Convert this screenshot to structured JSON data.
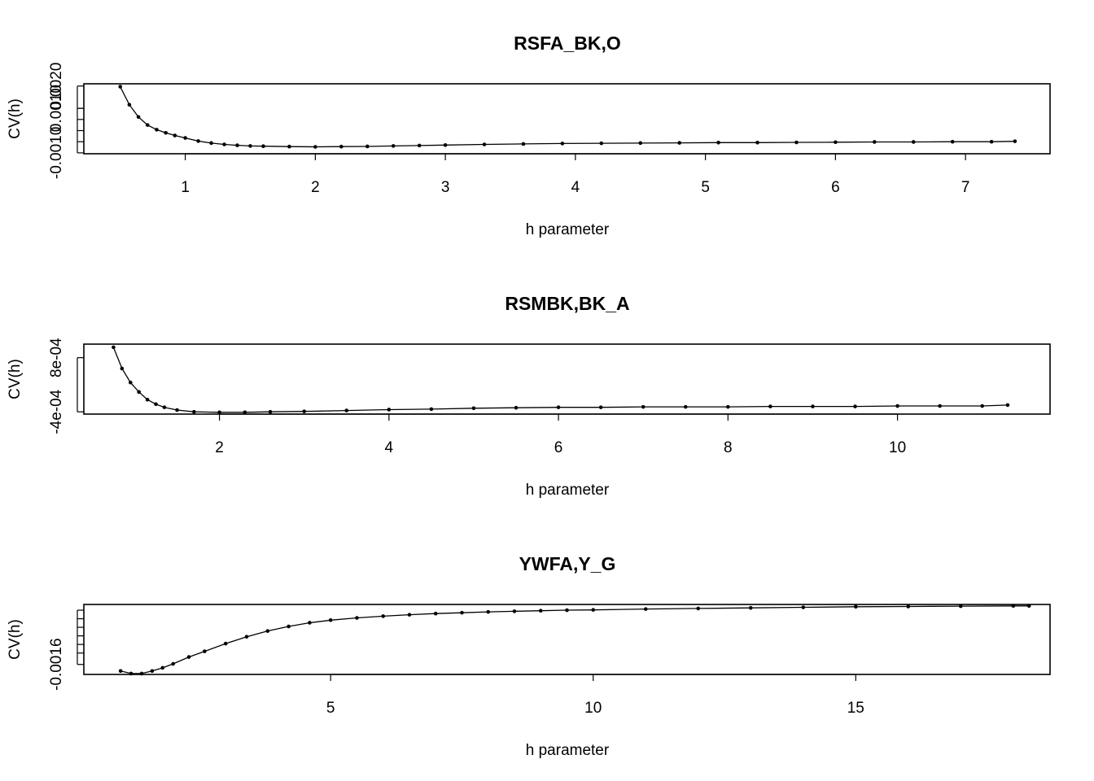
{
  "chart_data": [
    {
      "type": "line",
      "title": "RSFA_BK,O",
      "xlabel": "h parameter",
      "ylabel": "CV(h)",
      "xlim": [
        0.22,
        7.65
      ],
      "ylim": [
        -0.00104,
        0.0021
      ],
      "xticks": [
        1,
        2,
        3,
        4,
        5,
        6,
        7
      ],
      "yticks": [
        -0.001,
        0.001,
        0.002
      ],
      "ytick_labels": [
        "-0.0010",
        "0.0010",
        "0.0020"
      ],
      "series": [
        {
          "x": [
            0.5,
            0.57,
            0.64,
            0.71,
            0.78,
            0.85,
            0.92,
            1.0,
            1.1,
            1.2,
            1.3,
            1.4,
            1.5,
            1.6,
            1.8,
            2.0,
            2.2,
            2.4,
            2.6,
            2.8,
            3.0,
            3.3,
            3.6,
            3.9,
            4.2,
            4.5,
            4.8,
            5.1,
            5.4,
            5.7,
            6.0,
            6.3,
            6.6,
            6.9,
            7.2,
            7.38
          ],
          "y": [
            0.00197,
            0.00116,
            0.00061,
            0.00025,
            4e-05,
            -0.0001,
            -0.00022,
            -0.00033,
            -0.00047,
            -0.00056,
            -0.00062,
            -0.00066,
            -0.00069,
            -0.0007,
            -0.00072,
            -0.00073,
            -0.00072,
            -0.00071,
            -0.00069,
            -0.00067,
            -0.00065,
            -0.00062,
            -0.0006,
            -0.00058,
            -0.00057,
            -0.00056,
            -0.00055,
            -0.00054,
            -0.00054,
            -0.00053,
            -0.00052,
            -0.00051,
            -0.00051,
            -0.0005,
            -0.0005,
            -0.00048
          ]
        }
      ]
    },
    {
      "type": "line",
      "title": "RSMBK,BK_A",
      "xlabel": "h parameter",
      "ylabel": "CV(h)",
      "xlim": [
        0.4,
        11.8
      ],
      "ylim": [
        -0.00045,
        0.0011
      ],
      "xticks": [
        2,
        4,
        6,
        8,
        10
      ],
      "yticks": [
        -0.0004,
        0.0008
      ],
      "ytick_labels": [
        "-4e-04",
        "8e-04"
      ],
      "series": [
        {
          "x": [
            0.75,
            0.85,
            0.95,
            1.05,
            1.15,
            1.25,
            1.35,
            1.5,
            1.7,
            2.0,
            2.3,
            2.6,
            3.0,
            3.5,
            4.0,
            4.5,
            5.0,
            5.5,
            6.0,
            6.5,
            7.0,
            7.5,
            8.0,
            8.5,
            9.0,
            9.5,
            10.0,
            10.5,
            11.0,
            11.3
          ],
          "y": [
            0.00103,
            0.00056,
            0.00025,
            4e-05,
            -0.00013,
            -0.00023,
            -0.0003,
            -0.00036,
            -0.0004,
            -0.00041,
            -0.00041,
            -0.0004,
            -0.00039,
            -0.00037,
            -0.00035,
            -0.00034,
            -0.00032,
            -0.00031,
            -0.0003,
            -0.0003,
            -0.00029,
            -0.00029,
            -0.00029,
            -0.00028,
            -0.00028,
            -0.00028,
            -0.00027,
            -0.00027,
            -0.00027,
            -0.00025
          ]
        }
      ]
    },
    {
      "type": "line",
      "title": "YWFA,Y_G",
      "xlabel": "h parameter",
      "ylabel": "CV(h)",
      "xlim": [
        0.3,
        18.7
      ],
      "ylim": [
        -0.00195,
        0.0005
      ],
      "xticks": [
        5,
        10,
        15
      ],
      "yticks": [
        -0.0016
      ],
      "ytick_labels": [
        "-0.0016"
      ],
      "series": [
        {
          "x": [
            1.0,
            1.2,
            1.4,
            1.6,
            1.8,
            2.0,
            2.3,
            2.6,
            3.0,
            3.4,
            3.8,
            4.2,
            4.6,
            5.0,
            5.5,
            6.0,
            6.5,
            7.0,
            7.5,
            8.0,
            8.5,
            9.0,
            9.5,
            10.0,
            11.0,
            12.0,
            13.0,
            14.0,
            15.0,
            16.0,
            17.0,
            18.0,
            18.3
          ],
          "y": [
            -0.00183,
            -0.00192,
            -0.00192,
            -0.00183,
            -0.00172,
            -0.00158,
            -0.00134,
            -0.00114,
            -0.00087,
            -0.00063,
            -0.00043,
            -0.00027,
            -0.00014,
            -5e-05,
            3e-05,
            9e-05,
            0.00014,
            0.00018,
            0.00021,
            0.00024,
            0.00026,
            0.00028,
            0.0003,
            0.00031,
            0.00034,
            0.00036,
            0.00038,
            0.0004,
            0.00042,
            0.00043,
            0.00044,
            0.00045,
            0.00045
          ]
        }
      ]
    }
  ]
}
